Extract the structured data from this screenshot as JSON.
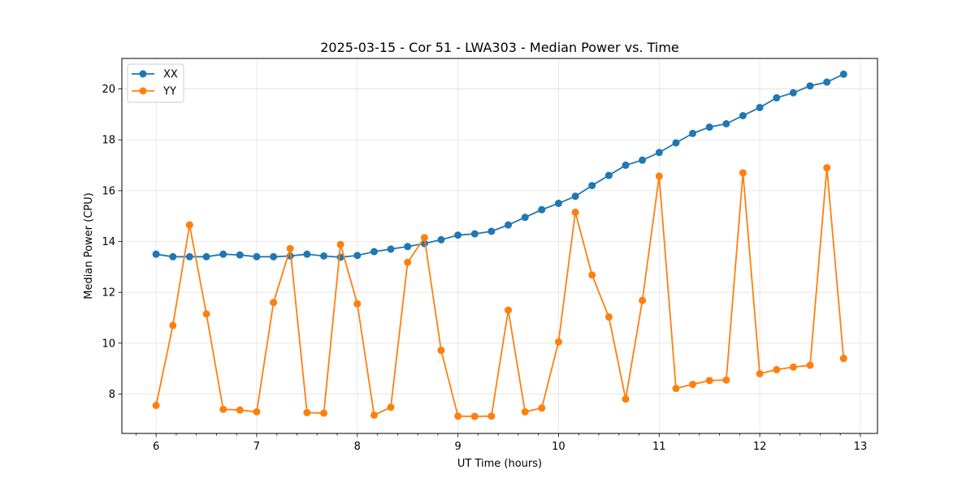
{
  "chart_data": {
    "type": "line",
    "title": "2025-03-15 - Cor 51 - LWA303 - Median Power vs. Time",
    "xlabel": "UT Time (hours)",
    "ylabel": "Median Power (CPU)",
    "xlim": [
      5.66,
      13.17
    ],
    "ylim": [
      6.45,
      21.2
    ],
    "x_ticks": [
      6,
      7,
      8,
      9,
      10,
      11,
      12,
      13
    ],
    "x_tick_labels": [
      "6",
      "7",
      "8",
      "9",
      "10",
      "11",
      "12",
      "13"
    ],
    "x_minor_step": 0.2,
    "y_ticks": [
      8,
      10,
      12,
      14,
      16,
      18,
      20
    ],
    "y_tick_labels": [
      "8",
      "10",
      "12",
      "14",
      "16",
      "18",
      "20"
    ],
    "grid": true,
    "legend_position": "top-left",
    "x": [
      6.0,
      6.167,
      6.333,
      6.5,
      6.667,
      6.833,
      7.0,
      7.167,
      7.333,
      7.5,
      7.667,
      7.833,
      8.0,
      8.167,
      8.333,
      8.5,
      8.667,
      8.833,
      9.0,
      9.167,
      9.333,
      9.5,
      9.667,
      9.833,
      10.0,
      10.167,
      10.333,
      10.5,
      10.667,
      10.833,
      11.0,
      11.167,
      11.333,
      11.5,
      11.667,
      11.833,
      12.0,
      12.167,
      12.333,
      12.5,
      12.667,
      12.833
    ],
    "series": [
      {
        "name": "XX",
        "color": "#1f77b4",
        "values": [
          13.5,
          13.4,
          13.4,
          13.4,
          13.5,
          13.47,
          13.4,
          13.4,
          13.43,
          13.5,
          13.43,
          13.38,
          13.45,
          13.6,
          13.7,
          13.8,
          13.92,
          14.07,
          14.25,
          14.3,
          14.4,
          14.65,
          14.95,
          15.25,
          15.5,
          15.78,
          16.2,
          16.6,
          17.0,
          17.2,
          17.5,
          17.88,
          18.25,
          18.5,
          18.63,
          18.95,
          19.27,
          19.65,
          19.85,
          20.12,
          20.27,
          20.58
        ]
      },
      {
        "name": "YY",
        "color": "#ff7f0e",
        "values": [
          7.55,
          10.7,
          14.65,
          11.15,
          7.4,
          7.37,
          7.3,
          11.6,
          13.72,
          7.27,
          7.25,
          13.88,
          11.55,
          7.17,
          7.48,
          13.18,
          14.15,
          9.72,
          7.13,
          7.12,
          7.13,
          11.3,
          7.3,
          7.45,
          10.05,
          15.15,
          12.68,
          11.03,
          7.8,
          11.68,
          16.57,
          8.22,
          8.38,
          8.53,
          8.55,
          16.7,
          8.8,
          8.96,
          9.06,
          9.13,
          16.9,
          9.4
        ]
      }
    ]
  }
}
